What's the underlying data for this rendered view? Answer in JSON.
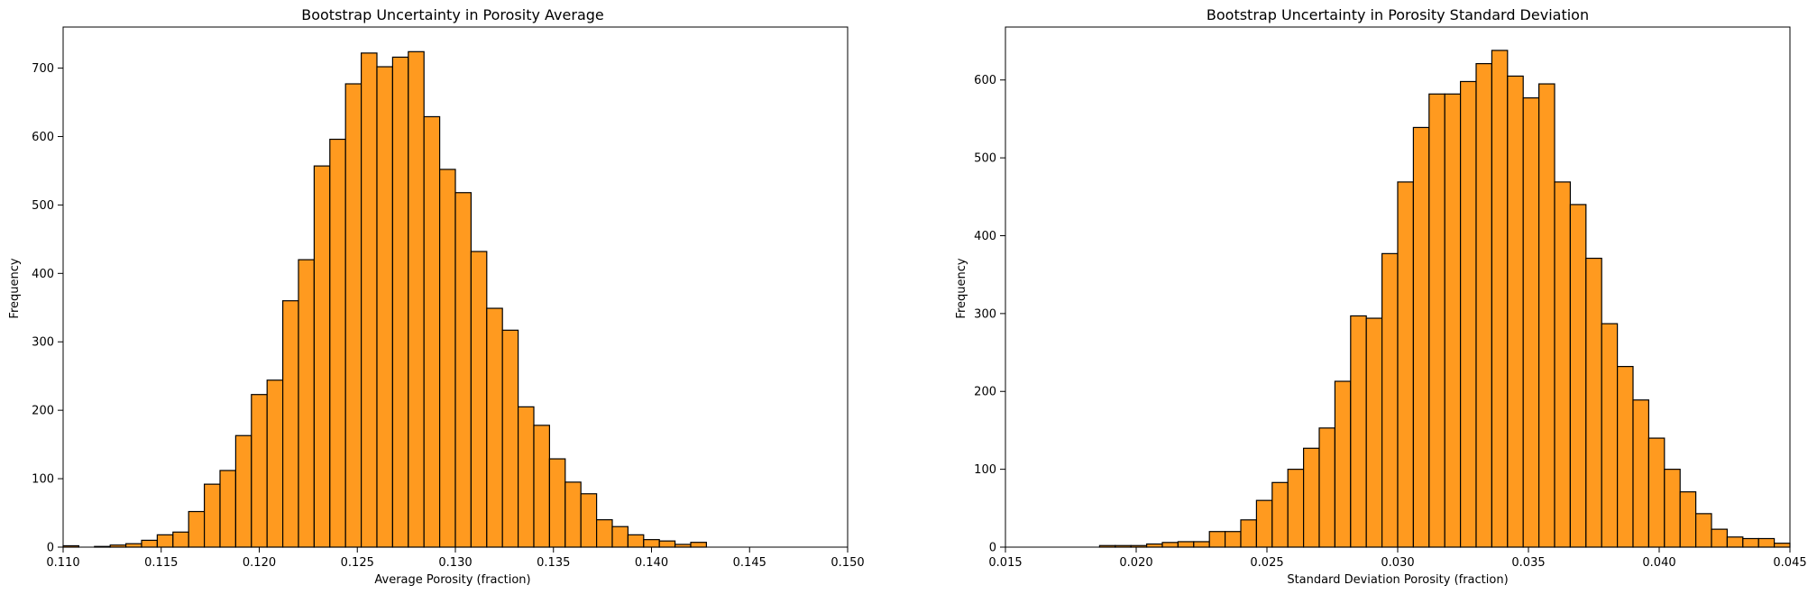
{
  "chart_data": [
    {
      "type": "bar",
      "title": "Bootstrap Uncertainty in Porosity Average",
      "xlabel": "Average Porosity (fraction)",
      "ylabel": "Frequency",
      "xlim": [
        0.11,
        0.15
      ],
      "ylim": [
        0,
        760
      ],
      "xticks": [
        "0.110",
        "0.115",
        "0.120",
        "0.125",
        "0.130",
        "0.135",
        "0.140",
        "0.145",
        "0.150"
      ],
      "yticks": [
        "0",
        "100",
        "200",
        "300",
        "400",
        "500",
        "600",
        "700"
      ],
      "bin_start": 0.11,
      "bin_width": 0.0008,
      "values": [
        2,
        0,
        1,
        3,
        5,
        10,
        18,
        22,
        52,
        92,
        112,
        163,
        223,
        244,
        360,
        420,
        557,
        596,
        677,
        722,
        702,
        716,
        724,
        629,
        552,
        518,
        432,
        349,
        317,
        205,
        178,
        129,
        95,
        78,
        40,
        30,
        18,
        11,
        9,
        4,
        7
      ],
      "bar_color": "#ff9a1f",
      "edge_color": "#000000",
      "grid": false
    },
    {
      "type": "bar",
      "title": "Bootstrap Uncertainty in Porosity Standard Deviation",
      "xlabel": "Standard Deviation Porosity (fraction)",
      "ylabel": "Frequency",
      "xlim": [
        0.015,
        0.045
      ],
      "ylim": [
        0,
        668
      ],
      "xticks": [
        "0.015",
        "0.020",
        "0.025",
        "0.030",
        "0.035",
        "0.040",
        "0.045"
      ],
      "yticks": [
        "0",
        "100",
        "200",
        "300",
        "400",
        "500",
        "600"
      ],
      "bin_start": 0.0186,
      "bin_width": 0.0006,
      "values": [
        2,
        2,
        2,
        4,
        6,
        7,
        7,
        20,
        20,
        35,
        60,
        83,
        100,
        127,
        153,
        213,
        297,
        294,
        377,
        469,
        539,
        582,
        582,
        598,
        621,
        638,
        605,
        577,
        595,
        469,
        440,
        371,
        287,
        232,
        189,
        140,
        100,
        71,
        43,
        23,
        13,
        11,
        11,
        5
      ],
      "bar_color": "#ff9a1f",
      "edge_color": "#000000",
      "grid": false
    }
  ]
}
